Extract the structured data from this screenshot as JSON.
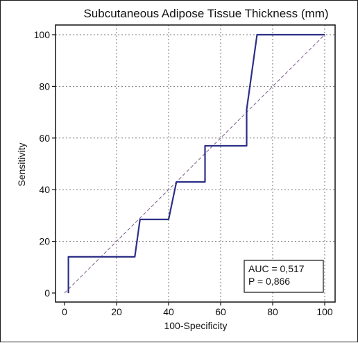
{
  "chart_data": {
    "type": "line",
    "title": "Subcutaneous Adipose Tissue Thickness (mm)",
    "xlabel": "100-Specificity",
    "ylabel": "Sensitivity",
    "xlim": [
      0,
      100
    ],
    "ylim": [
      0,
      100
    ],
    "x_ticks": [
      0,
      20,
      40,
      60,
      80,
      100
    ],
    "y_ticks": [
      0,
      20,
      40,
      60,
      80,
      100
    ],
    "grid": "dotted",
    "series": [
      {
        "style": "solid",
        "color": "#2b2f86",
        "x": [
          1.5,
          1.5,
          27,
          29,
          40,
          43,
          54,
          54,
          70,
          70,
          74,
          100
        ],
        "y": [
          0,
          14,
          14,
          28.5,
          28.5,
          43,
          43,
          57,
          57,
          71,
          100,
          100
        ]
      },
      {
        "style": "dashed",
        "color": "#7a5a8a",
        "x": [
          0,
          100
        ],
        "y": [
          0,
          100
        ]
      }
    ],
    "annotation": {
      "position": "bottom-right",
      "lines": [
        "AUC = 0,517",
        "P = 0,866"
      ]
    }
  }
}
